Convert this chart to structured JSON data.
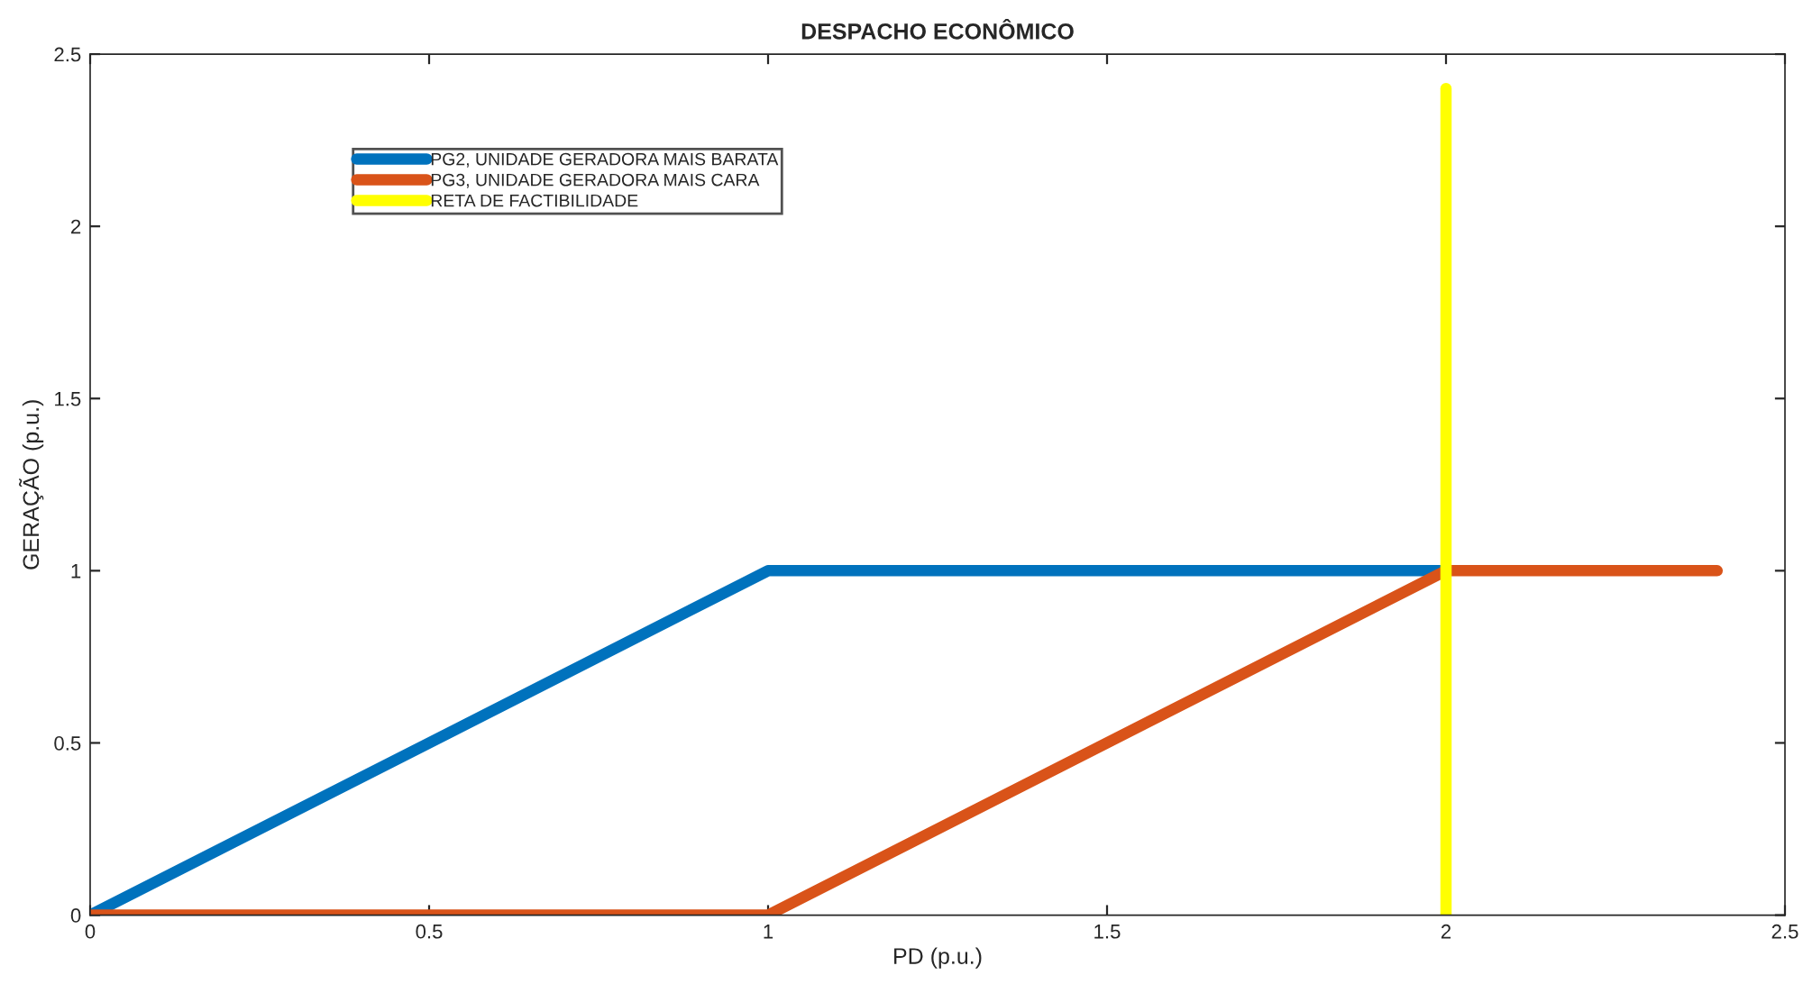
{
  "chart_data": {
    "type": "line",
    "title": "DESPACHO ECONÔMICO",
    "xlabel": "PD (p.u.)",
    "ylabel": "GERAÇÃO (p.u.)",
    "series": [
      {
        "name": "PG2, UNIDADE GERADORA MAIS BARATA",
        "color": "#0072bd",
        "x": [
          0,
          1,
          2
        ],
        "values": [
          0,
          1,
          1
        ]
      },
      {
        "name": "PG3, UNIDADE GERADORA MAIS CARA",
        "color": "#d95319",
        "x": [
          0,
          1,
          2,
          2.4
        ],
        "values": [
          0,
          0,
          1,
          1
        ]
      },
      {
        "name": "RETA DE FACTIBILIDADE",
        "color": "#ffff00",
        "x": [
          2,
          2
        ],
        "values": [
          0,
          2.4
        ]
      }
    ],
    "xlim": [
      0,
      2.5
    ],
    "xticks": [
      0,
      0.5,
      1,
      1.5,
      2,
      2.5
    ],
    "ylim": [
      0,
      2.5
    ],
    "yticks": [
      0,
      0.5,
      1,
      1.5,
      2,
      2.5
    ],
    "grid": false,
    "legend": "top left",
    "marker": "none",
    "line_style": "solid"
  }
}
